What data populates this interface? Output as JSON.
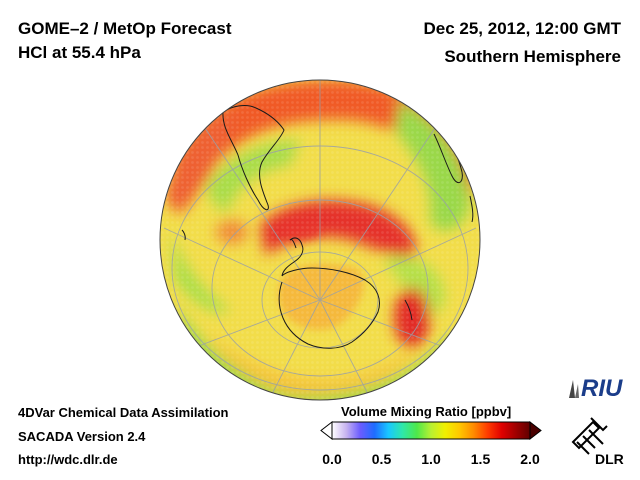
{
  "header": {
    "instrument": "GOME–2 / MetOp Forecast",
    "quantity": "HCl at 55.4 hPa",
    "datetime": "Dec 25, 2012, 12:00 GMT",
    "region": "Southern Hemisphere"
  },
  "footer": {
    "method": "4DVar Chemical Data Assimilation",
    "version": "SACADA Version 2.4",
    "url": "http://wdc.dlr.de"
  },
  "colorbar": {
    "title": "Volume Mixing Ratio [ppbv]",
    "min": 0.0,
    "max": 2.0,
    "ticks": [
      "0.0",
      "0.5",
      "1.0",
      "1.5",
      "2.0"
    ],
    "tick_values": [
      0.0,
      0.5,
      1.0,
      1.5,
      2.0
    ],
    "colors": [
      "#ffffff",
      "#c8b4f0",
      "#6a5cff",
      "#1f6cff",
      "#19c8ff",
      "#2fe8a8",
      "#4ee84a",
      "#b8f032",
      "#f0f000",
      "#ffc800",
      "#ff8c00",
      "#ff3c00",
      "#e00000",
      "#a00000",
      "#600000"
    ]
  },
  "logos": {
    "riu": "RIU",
    "dlr": "DLR"
  },
  "map": {
    "projection": "orthographic south polar",
    "ocean_base_color": "#f5e04a"
  }
}
